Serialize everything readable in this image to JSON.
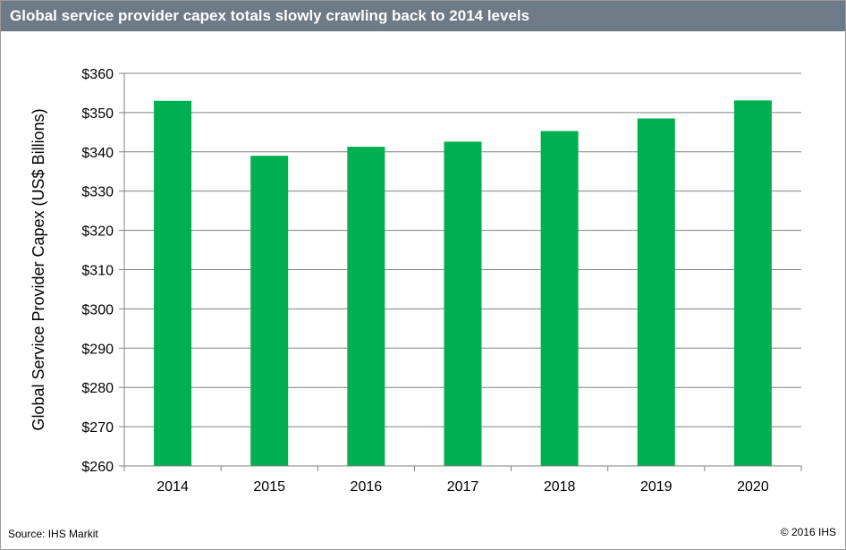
{
  "header": {
    "title": "Global service provider capex totals slowly crawling back to 2014 levels"
  },
  "footer": {
    "source": "Source: IHS Markit",
    "copyright": "© 2016 IHS"
  },
  "colors": {
    "bar": "#00b050",
    "header_bg": "#6e7a85",
    "gridline": "#808080"
  },
  "chart_data": {
    "type": "bar",
    "categories": [
      "2014",
      "2015",
      "2016",
      "2017",
      "2018",
      "2019",
      "2020"
    ],
    "values": [
      353,
      339,
      341.3,
      342.6,
      345.3,
      348.5,
      353.1
    ],
    "ylabel": "Global Service Provider Capex (US$ Billions)",
    "xlabel": "",
    "ylim": [
      260,
      360
    ],
    "yticks": [
      260,
      270,
      280,
      290,
      300,
      310,
      320,
      330,
      340,
      350,
      360
    ],
    "ytick_labels": [
      "$260",
      "$270",
      "$280",
      "$290",
      "$300",
      "$310",
      "$320",
      "$330",
      "$340",
      "$350",
      "$360"
    ],
    "grid": true,
    "legend": "none"
  }
}
